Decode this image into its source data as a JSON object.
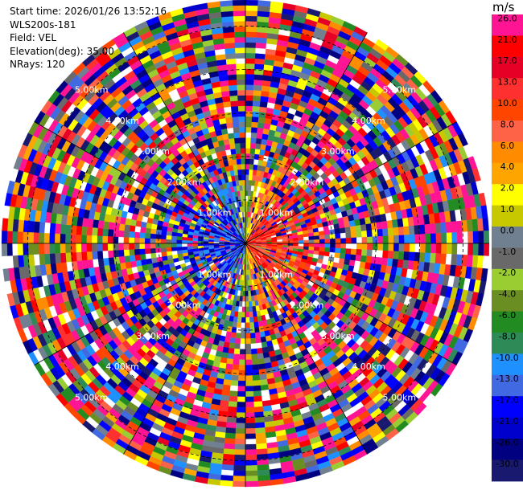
{
  "header": {
    "start_time": "Start time: 2026/01/26 13:52:16",
    "instrument": "WLS200s-181",
    "field": "Field: VEL",
    "elevation": "Elevation(deg): 35.00",
    "nrays": "NRays: 120"
  },
  "colorbar": {
    "unit": "m/s",
    "ticks": [
      "26.0",
      "21.0",
      "17.0",
      "13.0",
      "10.0",
      "8.0",
      "6.0",
      "4.0",
      "2.0",
      "1.0",
      "0.0",
      "-1.0",
      "-2.0",
      "-4.0",
      "-6.0",
      "-8.0",
      "-10.0",
      "-13.0",
      "-17.0",
      "-21.0",
      "-26.0",
      "-30.0"
    ],
    "colors": [
      "#ff1493",
      "#ff0000",
      "#e60026",
      "#ff3030",
      "#ff4500",
      "#ff6347",
      "#ff8c00",
      "#ffa500",
      "#ffff00",
      "#c8c800",
      "#708090",
      "#696969",
      "#9acd32",
      "#6b8e23",
      "#228b22",
      "#2e8b57",
      "#1e90ff",
      "#4169e1",
      "#0000ff",
      "#0000cd",
      "#000080",
      "#191970"
    ]
  },
  "chart_data": {
    "type": "ppi",
    "title": "",
    "field": "VEL",
    "units": "m/s",
    "elevation_deg": 35.0,
    "n_rays": 120,
    "range_rings_km": [
      1.0,
      2.0,
      3.0,
      4.0,
      5.0
    ],
    "ring_labels": [
      "1.00km",
      "2.00km",
      "3.00km",
      "4.00km",
      "5.00km"
    ],
    "max_range_km": 5.6,
    "color_scale_min": -30.0,
    "color_scale_max": 26.0,
    "pattern": "near-range coherent wind: positive (warm) velocities toward east/southeast, negative (blue) toward west/northwest; beyond ~2 km the field is noise"
  }
}
